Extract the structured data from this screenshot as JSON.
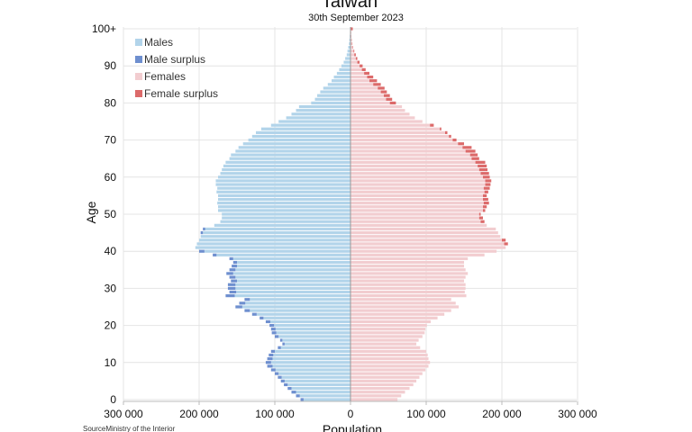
{
  "chart_data": {
    "type": "bar",
    "subtype": "population-pyramid",
    "title": "Taiwan",
    "subtitle": "30th September 2023",
    "xlabel": "Population",
    "ylabel": "Age",
    "source": "SourceMinistry of the Interior",
    "x_ticks": [
      "300 000",
      "200 000",
      "100 000",
      "0",
      "100 000",
      "200 000",
      "300 000"
    ],
    "y_ticks": [
      "0",
      "10",
      "20",
      "30",
      "40",
      "50",
      "60",
      "70",
      "80",
      "90",
      "100+"
    ],
    "xlim": [
      -300000,
      300000
    ],
    "grid": true,
    "legend": {
      "placement": "top-left",
      "entries": [
        "Males",
        "Male surplus",
        "Females",
        "Female surplus"
      ]
    },
    "colors": {
      "male": "#b2d4ea",
      "male_surplus": "#6e8fcf",
      "female": "#f2cdd0",
      "female_surplus": "#dc6a6a"
    },
    "ages": [
      0,
      1,
      2,
      3,
      4,
      5,
      6,
      7,
      8,
      9,
      10,
      11,
      12,
      13,
      14,
      15,
      16,
      17,
      18,
      19,
      20,
      21,
      22,
      23,
      24,
      25,
      26,
      27,
      28,
      29,
      30,
      31,
      32,
      33,
      34,
      35,
      36,
      37,
      38,
      39,
      40,
      41,
      42,
      43,
      44,
      45,
      46,
      47,
      48,
      49,
      50,
      51,
      52,
      53,
      54,
      55,
      56,
      57,
      58,
      59,
      60,
      61,
      62,
      63,
      64,
      65,
      66,
      67,
      68,
      69,
      70,
      71,
      72,
      73,
      74,
      75,
      76,
      77,
      78,
      79,
      80,
      81,
      82,
      83,
      84,
      85,
      86,
      87,
      88,
      89,
      90,
      91,
      92,
      93,
      94,
      95,
      96,
      97,
      98,
      99,
      100
    ],
    "male": [
      66000,
      72000,
      78000,
      83000,
      88000,
      92000,
      96000,
      100000,
      105000,
      110000,
      112000,
      110000,
      108000,
      105000,
      96000,
      90000,
      93000,
      100000,
      104000,
      105000,
      107000,
      112000,
      120000,
      130000,
      140000,
      152000,
      147000,
      140000,
      165000,
      160000,
      162000,
      162000,
      158000,
      160000,
      164000,
      160000,
      157000,
      155000,
      160000,
      182000,
      200000,
      205000,
      203000,
      200000,
      198000,
      198000,
      195000,
      180000,
      172000,
      170000,
      170000,
      175000,
      175000,
      176000,
      175000,
      175000,
      177000,
      176000,
      178000,
      178000,
      175000,
      172000,
      170000,
      168000,
      165000,
      160000,
      158000,
      152000,
      148000,
      142000,
      135000,
      130000,
      125000,
      118000,
      105000,
      95000,
      85000,
      78000,
      72000,
      68000,
      52000,
      47000,
      44000,
      40000,
      36000,
      30000,
      25000,
      22000,
      18000,
      15000,
      12000,
      9000,
      7000,
      5000,
      4000,
      3000,
      2000,
      1500,
      1000,
      600,
      500
    ],
    "female": [
      62000,
      67000,
      72000,
      78000,
      83000,
      87000,
      91000,
      95000,
      99000,
      103000,
      105000,
      103000,
      102000,
      100000,
      92000,
      87000,
      90000,
      95000,
      98000,
      99000,
      101000,
      106000,
      115000,
      124000,
      133000,
      143000,
      139000,
      133000,
      153000,
      151000,
      152000,
      152000,
      150000,
      152000,
      155000,
      152000,
      150000,
      150000,
      155000,
      177000,
      193000,
      205000,
      208000,
      205000,
      198000,
      195000,
      192000,
      180000,
      177000,
      175000,
      172000,
      178000,
      180000,
      183000,
      182000,
      180000,
      182000,
      184000,
      185000,
      186000,
      184000,
      183000,
      181000,
      180000,
      178000,
      170000,
      168000,
      165000,
      160000,
      150000,
      140000,
      133000,
      128000,
      120000,
      110000,
      95000,
      85000,
      78000,
      72000,
      68000,
      60000,
      55000,
      52000,
      48000,
      45000,
      40000,
      35000,
      30000,
      25000,
      20000,
      16000,
      12000,
      9000,
      7000,
      5000,
      3500,
      2500,
      1800,
      1200,
      800,
      3000
    ]
  }
}
